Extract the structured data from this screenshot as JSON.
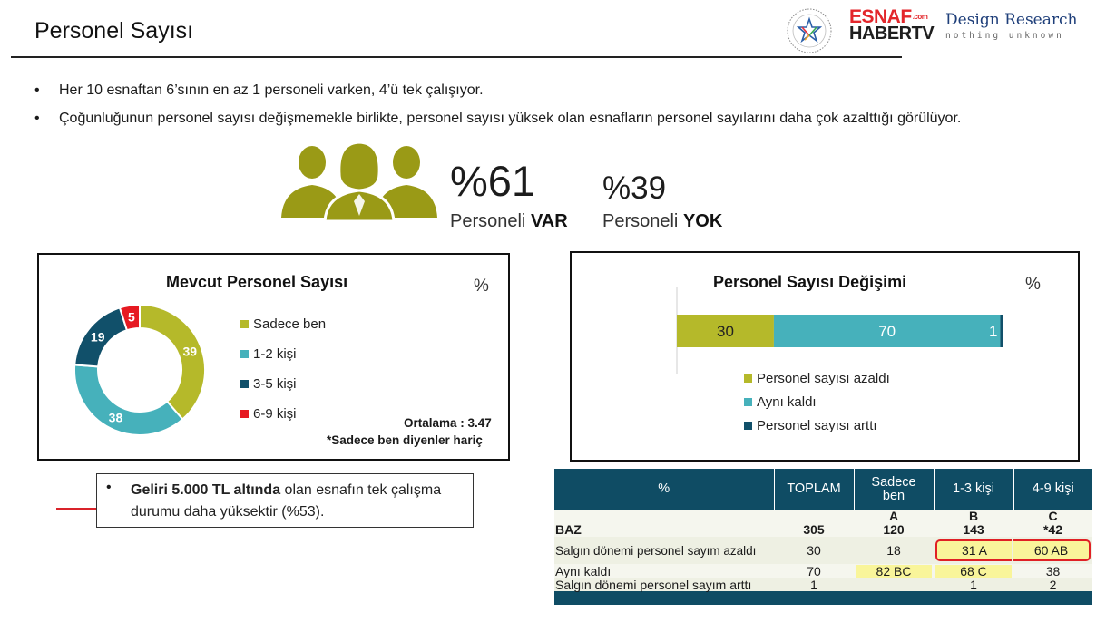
{
  "header": {
    "title": "Personel Sayısı",
    "logo_esnaf_line1": "ESNAF",
    "logo_esnaf_line2": "HABERTV",
    "logo_esnaf_com": ".com",
    "logo_dr_line1": "Design Research",
    "logo_dr_line2": "nothing unknown"
  },
  "bullets": [
    "Her 10 esnaftan 6’sının en az 1 personeli varken, 4’ü tek çalışıyor.",
    "Çoğunluğunun personel sayısı değişmemekle birlikte, personel sayısı yüksek olan esnafların personel sayılarını daha çok azalttığı görülüyor."
  ],
  "summary": {
    "has_staff_pct": "%61",
    "has_staff_label_prefix": "Personeli ",
    "has_staff_label_strong": "VAR",
    "no_staff_pct": "%39",
    "no_staff_label_prefix": "Personeli ",
    "no_staff_label_strong": "YOK"
  },
  "colors": {
    "olive": "#b5b92a",
    "teal": "#46b1bb",
    "navy": "#11506a",
    "red": "#e61a22",
    "icon_olive": "#9a9a16"
  },
  "chart_data": [
    {
      "type": "pie",
      "variant": "donut",
      "title": "Mevcut Personel Sayısı",
      "unit": "%",
      "categories": [
        "Sadece ben",
        "1-2 kişi",
        "3-5 kişi",
        "6-9 kişi"
      ],
      "values": [
        39,
        38,
        19,
        5
      ],
      "colors": [
        "#b5b92a",
        "#46b1bb",
        "#11506a",
        "#e61a22"
      ],
      "notes": [
        "Ortalama : 3.47",
        "*Sadece ben diyenler hariç"
      ]
    },
    {
      "type": "bar",
      "variant": "stacked-horizontal",
      "title": "Personel Sayısı Değişimi",
      "unit": "%",
      "categories": [
        "Personel sayısı azaldı",
        "Aynı kaldı",
        "Personel sayısı arttı"
      ],
      "values": [
        30,
        70,
        1
      ],
      "colors": [
        "#b5b92a",
        "#46b1bb",
        "#11506a"
      ],
      "xlim": [
        0,
        101
      ]
    }
  ],
  "note": {
    "strong": "Geliri 5.000 TL altında",
    "rest": " olan esnafın tek çalışma durumu daha yüksektir (%53)."
  },
  "table": {
    "corner": "%",
    "columns": [
      "TOPLAM",
      "Sadece ben",
      "1-3 kişi",
      "4-9 kişi"
    ],
    "letters": [
      "",
      "A",
      "B",
      "C"
    ],
    "base_label": "BAZ",
    "base_values": [
      "305",
      "120",
      "143",
      "*42"
    ],
    "rows": [
      {
        "label": "Salgın dönemi personel sayım azaldı",
        "values": [
          "30",
          "18",
          "31 A",
          "60 AB"
        ]
      },
      {
        "label": "Aynı kaldı",
        "values": [
          "70",
          "82 BC",
          "68 C",
          "38"
        ]
      },
      {
        "label": "Salgın dönemi personel sayım arttı",
        "values": [
          "1",
          "",
          "1",
          "2"
        ]
      }
    ]
  }
}
